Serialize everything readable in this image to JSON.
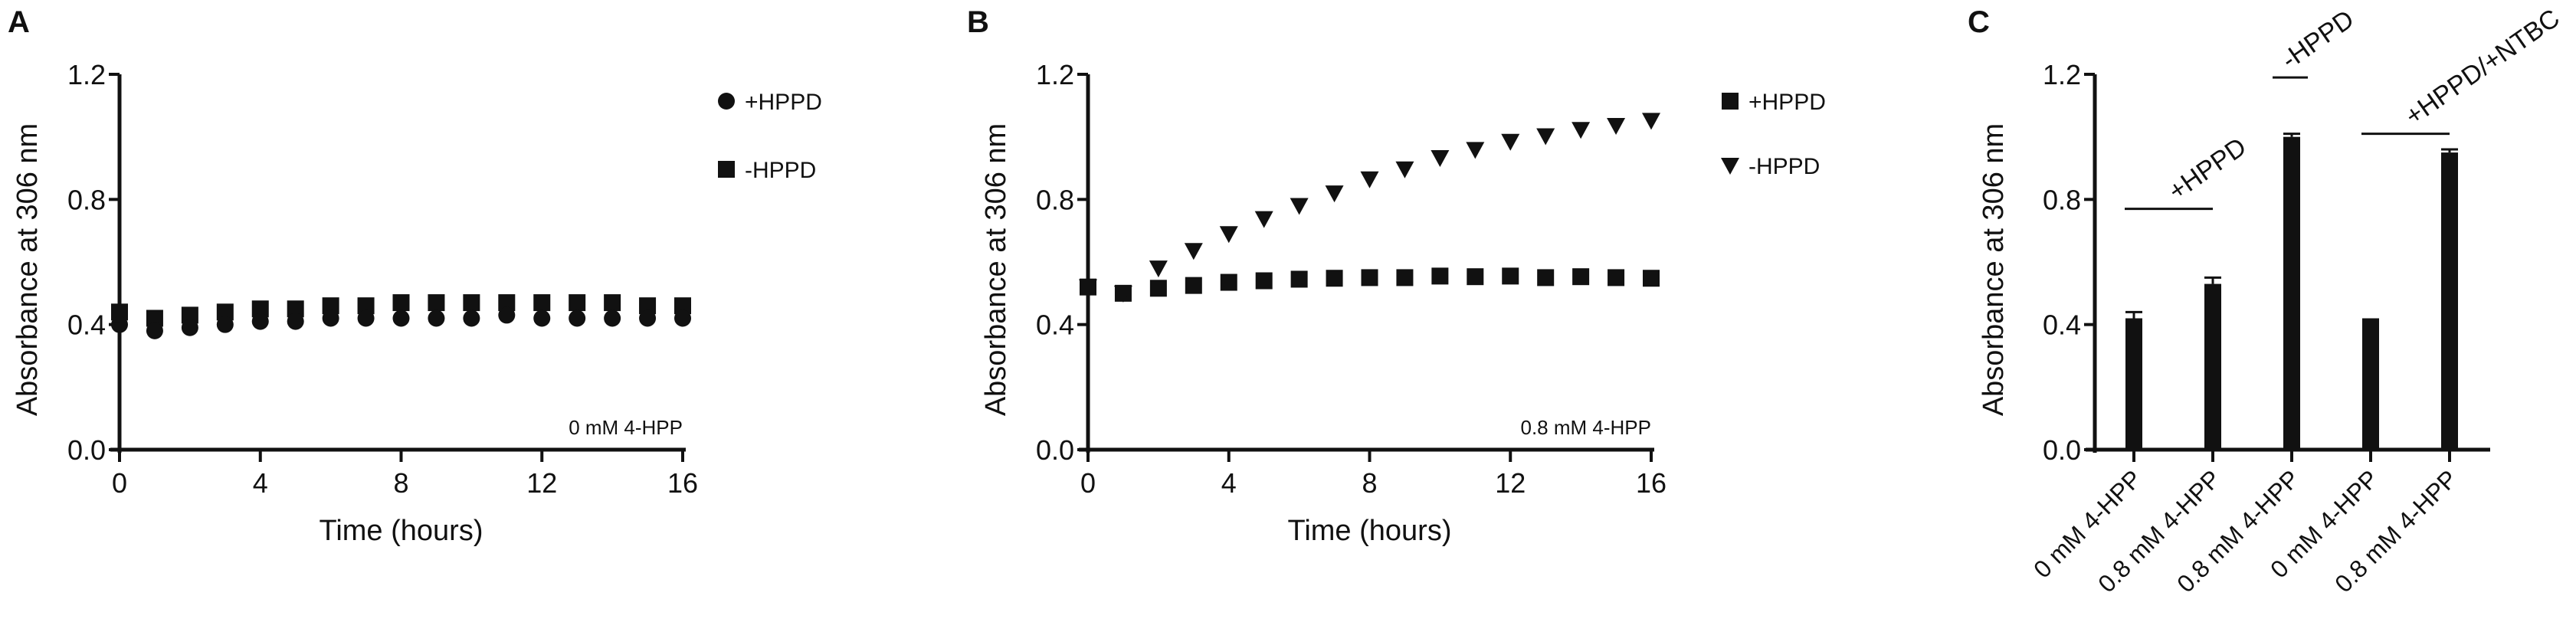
{
  "chart_data": [
    {
      "panel_label": "A",
      "type": "scatter",
      "xlabel": "Time (hours)",
      "ylabel": "Absorbance at 306 nm",
      "xlim": [
        0,
        16
      ],
      "ylim": [
        0,
        1.2
      ],
      "xticks": [
        "0",
        "4",
        "8",
        "12",
        "16"
      ],
      "yticks": [
        "0.0",
        "0.4",
        "0.8",
        "1.2"
      ],
      "annotation": "0 mM 4-HPP",
      "legend_position": "top-right",
      "x": [
        0,
        1,
        2,
        3,
        4,
        5,
        6,
        7,
        8,
        9,
        10,
        11,
        12,
        13,
        14,
        15,
        16
      ],
      "series": [
        {
          "name": "+HPPD",
          "marker": "circle",
          "values": [
            0.4,
            0.38,
            0.39,
            0.4,
            0.41,
            0.41,
            0.42,
            0.42,
            0.42,
            0.42,
            0.42,
            0.43,
            0.42,
            0.42,
            0.42,
            0.42,
            0.42
          ]
        },
        {
          "name": "-HPPD",
          "marker": "square",
          "values": [
            0.44,
            0.42,
            0.43,
            0.44,
            0.45,
            0.45,
            0.46,
            0.46,
            0.47,
            0.47,
            0.47,
            0.47,
            0.47,
            0.47,
            0.47,
            0.46,
            0.46
          ]
        }
      ]
    },
    {
      "panel_label": "B",
      "type": "scatter",
      "xlabel": "Time (hours)",
      "ylabel": "Absorbance at 306 nm",
      "xlim": [
        0,
        16
      ],
      "ylim": [
        0,
        1.2
      ],
      "xticks": [
        "0",
        "4",
        "8",
        "12",
        "16"
      ],
      "yticks": [
        "0.0",
        "0.4",
        "0.8",
        "1.2"
      ],
      "annotation": "0.8 mM 4-HPP",
      "legend_position": "top-right",
      "x": [
        0,
        1,
        2,
        3,
        4,
        5,
        6,
        7,
        8,
        9,
        10,
        11,
        12,
        13,
        14,
        15,
        16
      ],
      "series": [
        {
          "name": "+HPPD",
          "marker": "square",
          "values": [
            0.52,
            0.5,
            0.516,
            0.525,
            0.535,
            0.54,
            0.545,
            0.548,
            0.55,
            0.55,
            0.555,
            0.553,
            0.555,
            0.55,
            0.553,
            0.55,
            0.548
          ]
        },
        {
          "name": "-HPPD",
          "marker": "triangle-down",
          "values": [
            0.52,
            0.5,
            0.58,
            0.636,
            0.69,
            0.738,
            0.78,
            0.82,
            0.865,
            0.897,
            0.933,
            0.959,
            0.985,
            1.003,
            1.023,
            1.036,
            1.052
          ]
        }
      ]
    },
    {
      "panel_label": "C",
      "type": "bar",
      "ylabel": "Absorbance at 306 nm",
      "ylim": [
        0,
        1.2
      ],
      "yticks": [
        "0.0",
        "0.4",
        "0.8",
        "1.2"
      ],
      "categories": [
        "0 mM 4-HPP",
        "0.8 mM 4-HPP",
        "0.8 mM 4-HPP",
        "0 mM 4-HPP",
        "0.8 mM 4-HPP"
      ],
      "values": [
        0.42,
        0.53,
        1.0,
        0.42,
        0.95
      ],
      "errors": [
        0.02,
        0.02,
        0.01,
        0.0,
        0.01
      ],
      "groups": [
        {
          "label": "+HPPD",
          "bars": [
            0,
            1
          ],
          "y": 0.77
        },
        {
          "label": "-HPPD",
          "bars": [
            2
          ],
          "y": 1.19
        },
        {
          "label": "+HPPD/+NTBC",
          "bars": [
            3,
            4
          ],
          "y": 1.01
        }
      ]
    }
  ]
}
